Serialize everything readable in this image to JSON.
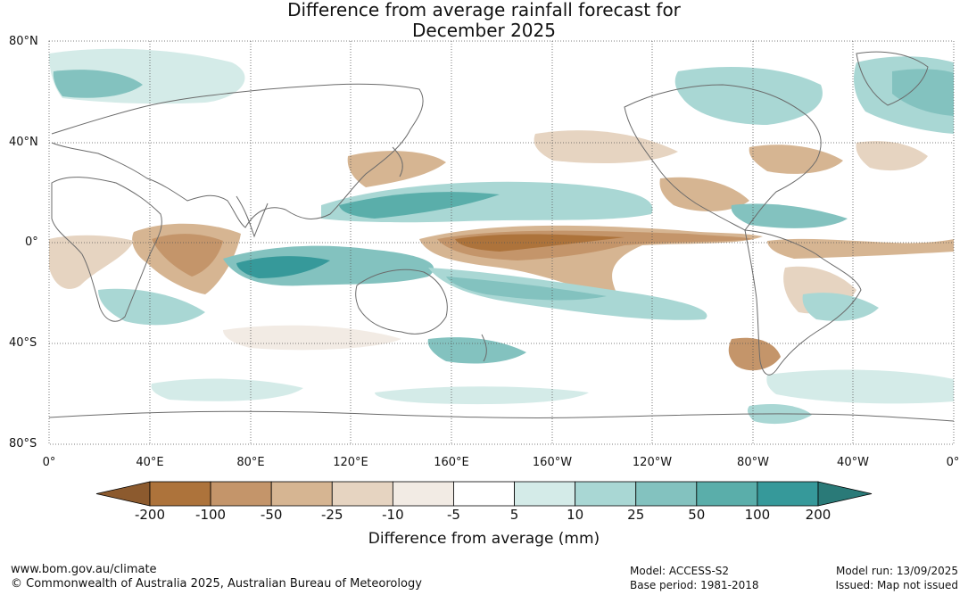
{
  "title": {
    "line1": "Difference from average rainfall forecast for",
    "line2": "December 2025"
  },
  "map": {
    "projection": "equirectangular",
    "lat_labels": [
      "80°N",
      "40°N",
      "0°",
      "40°S",
      "80°S"
    ],
    "lon_labels": [
      "0°",
      "40°E",
      "80°E",
      "120°E",
      "160°E",
      "160°W",
      "120°W",
      "80°W",
      "40°W",
      "0°"
    ]
  },
  "colorbar": {
    "title": "Difference from average (mm)",
    "ticks": [
      "-200",
      "-100",
      "-50",
      "-25",
      "-10",
      "-5",
      "5",
      "10",
      "25",
      "50",
      "100",
      "200"
    ],
    "colors": [
      "#8c5a2e",
      "#ad733b",
      "#c4956a",
      "#d6b592",
      "#e6d4c1",
      "#f2ebe4",
      "#ffffff",
      "#d4ebe8",
      "#a9d7d4",
      "#83c2bf",
      "#5aaeaa",
      "#36999a",
      "#2a7a78"
    ]
  },
  "footer": {
    "website": "www.bom.gov.au/climate",
    "copyright": "© Commonwealth of Australia 2025, Australian Bureau of Meteorology",
    "model": "Model: ACCESS-S2",
    "base_period": "Base period: 1981-2018",
    "model_run": "Model run: 13/09/2025",
    "issued": "Issued: Map not issued"
  }
}
